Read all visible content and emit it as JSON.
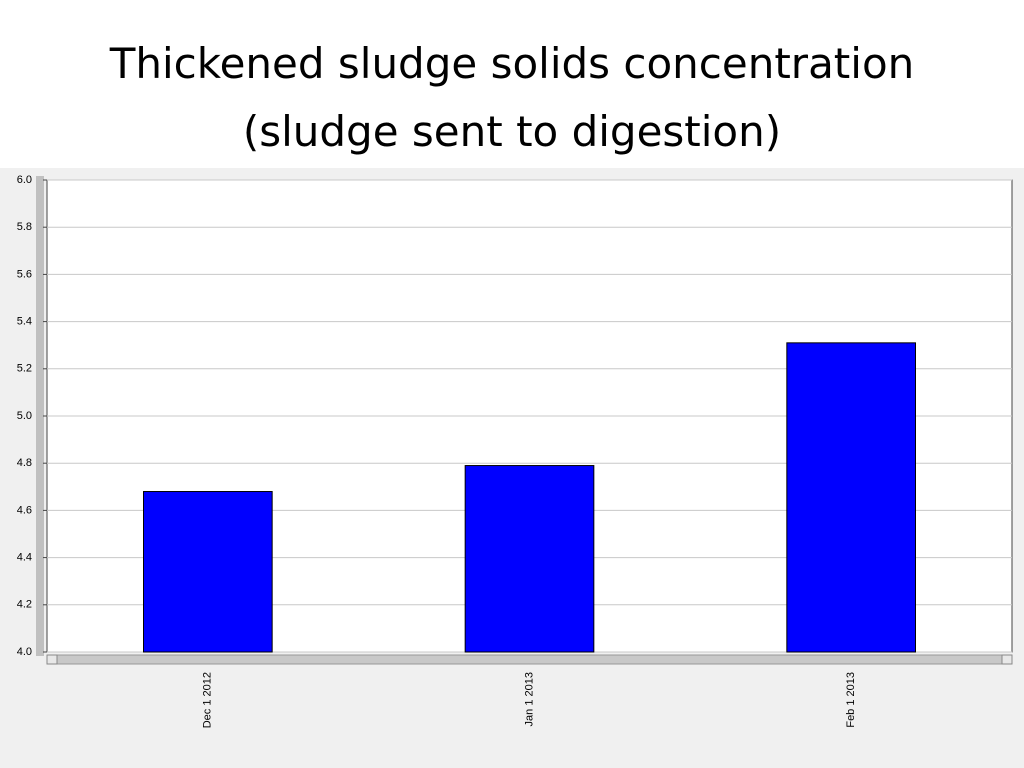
{
  "chart_data": {
    "type": "bar",
    "title": "Thickened sludge solids concentration (sludge sent to digestion)",
    "categories": [
      "Dec 1 2012",
      "Jan 1 2013",
      "Feb 1 2013"
    ],
    "values": [
      4.68,
      4.79,
      5.31
    ],
    "color": "#0000ff",
    "ylim": [
      4.0,
      6.0
    ],
    "yticks": [
      {
        "value": 4,
        "label": "4.0"
      },
      4.2,
      4.4,
      4.6,
      4.8,
      {
        "value": 5,
        "label": "5.0"
      },
      5.2,
      5.4,
      5.6,
      5.8,
      {
        "value": 6,
        "label": "6.0"
      }
    ],
    "grid": true
  }
}
